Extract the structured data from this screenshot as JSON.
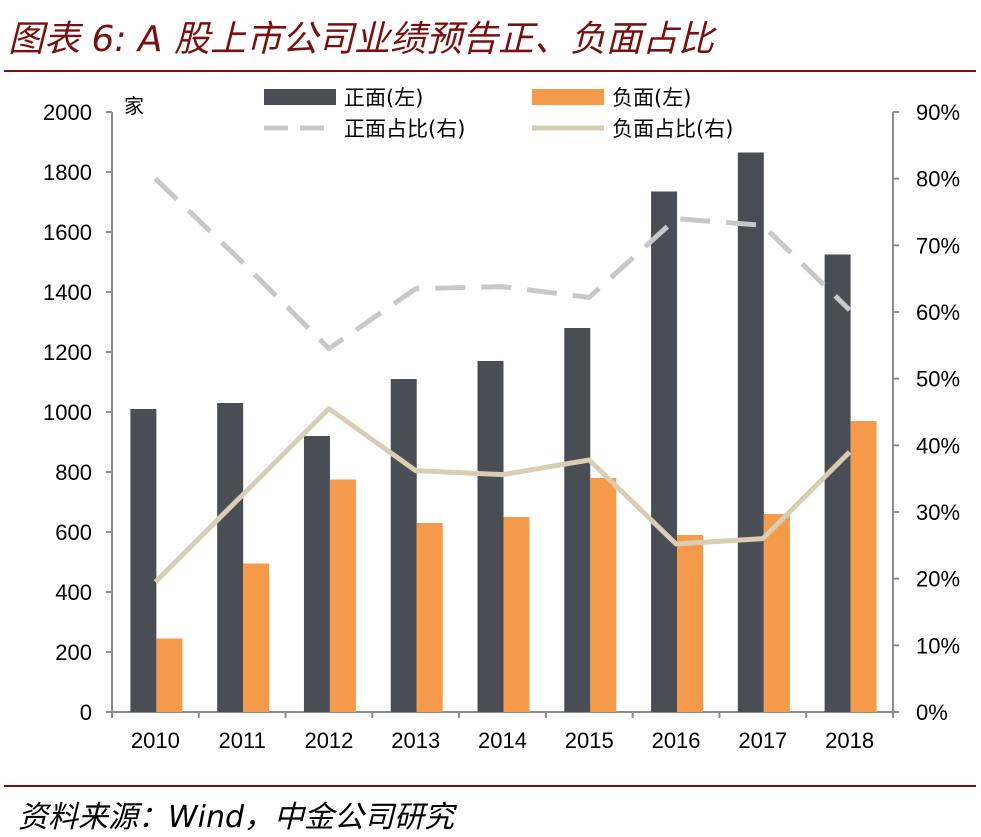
{
  "title": "图表 6: A 股上市公司业绩预告正、负面占比",
  "source": "资料来源：Wind，中金公司研究",
  "chart_data": {
    "type": "bar",
    "title": "图表 6: A 股上市公司业绩预告正、负面占比",
    "categories": [
      "2010",
      "2011",
      "2012",
      "2013",
      "2014",
      "2015",
      "2016",
      "2017",
      "2018"
    ],
    "series": [
      {
        "name": "正面(左)",
        "kind": "bar",
        "axis": "left",
        "color": "#4a4d53",
        "values": [
          1010,
          1030,
          920,
          1110,
          1170,
          1280,
          1735,
          1865,
          1525
        ]
      },
      {
        "name": "负面(左)",
        "kind": "bar",
        "axis": "left",
        "color": "#f59a4a",
        "values": [
          245,
          495,
          775,
          630,
          650,
          780,
          590,
          660,
          970
        ]
      },
      {
        "name": "正面占比(右)",
        "kind": "line",
        "axis": "right",
        "color": "#c8c8c8",
        "dash": true,
        "values": [
          0.8,
          0.675,
          0.545,
          0.635,
          0.638,
          0.622,
          0.74,
          0.73,
          0.603
        ]
      },
      {
        "name": "负面占比(右)",
        "kind": "line",
        "axis": "right",
        "color": "#d9cdb4",
        "dash": false,
        "values": [
          0.195,
          0.325,
          0.455,
          0.362,
          0.356,
          0.378,
          0.252,
          0.26,
          0.39
        ]
      }
    ],
    "left_axis": {
      "unit": "家",
      "ylim": [
        0,
        2000
      ],
      "ticks": [
        "0",
        "200",
        "400",
        "600",
        "800",
        "1000",
        "1200",
        "1400",
        "1600",
        "1800",
        "2000"
      ]
    },
    "right_axis": {
      "ylim": [
        0,
        0.9
      ],
      "ticks": [
        "0%",
        "10%",
        "20%",
        "30%",
        "40%",
        "50%",
        "60%",
        "70%",
        "80%",
        "90%"
      ]
    },
    "legend_position": "top",
    "grid": false
  }
}
